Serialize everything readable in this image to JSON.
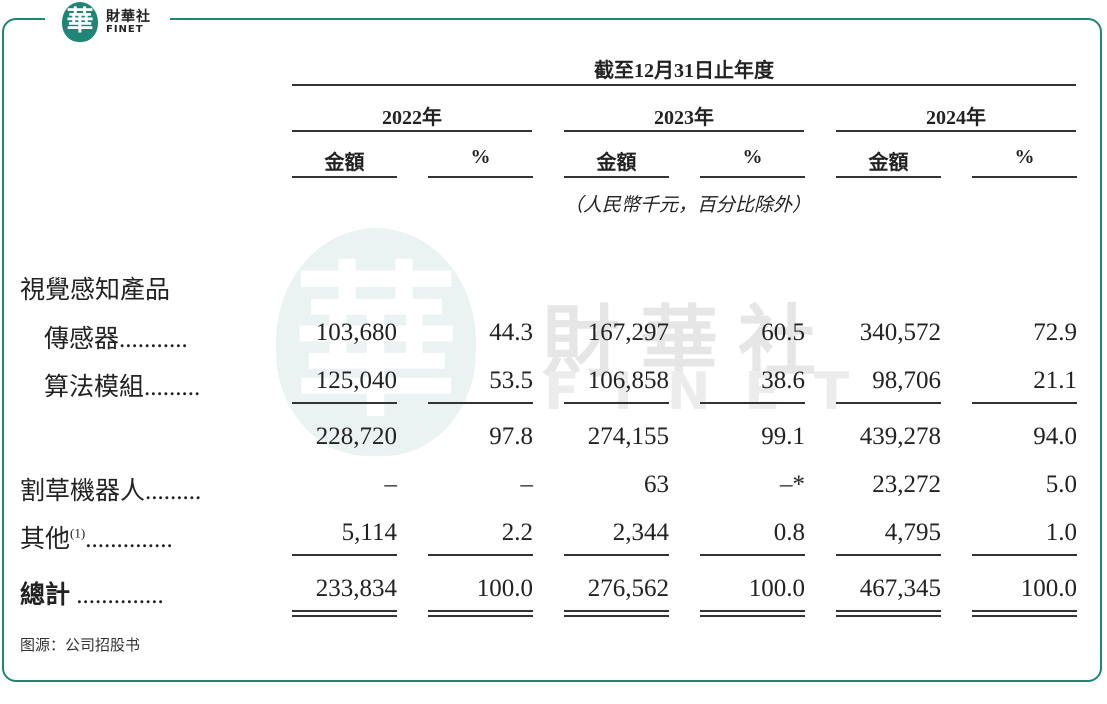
{
  "logo": {
    "glyph": "華",
    "name_cn": "財華社",
    "name_en": "FINET"
  },
  "watermark": {
    "glyph": "華",
    "name_cn": "財華社",
    "name_en": "FINET"
  },
  "table": {
    "period_header": "截至12月31日止年度",
    "years": [
      "2022年",
      "2023年",
      "2024年"
    ],
    "col_amount": "金額",
    "col_pct": "%",
    "unit_note": "（人民幣千元，百分比除外）",
    "section_label": "視覺感知產品",
    "rows": [
      {
        "label": "傳感器",
        "dots": "...........",
        "values": [
          "103,680",
          "44.3",
          "167,297",
          "60.5",
          "340,572",
          "72.9"
        ]
      },
      {
        "label": "算法模組",
        "dots": ".........",
        "values": [
          "125,040",
          "53.5",
          "106,858",
          "38.6",
          "98,706",
          "21.1"
        ]
      },
      {
        "label": "",
        "dots": "",
        "values": [
          "228,720",
          "97.8",
          "274,155",
          "99.1",
          "439,278",
          "94.0"
        ]
      },
      {
        "label": "割草機器人",
        "dots": ".........",
        "values": [
          "–",
          "–",
          "63",
          "–*",
          "23,272",
          "5.0"
        ]
      },
      {
        "label": "其他",
        "footnote": "(1)",
        "dots": "..............",
        "values": [
          "5,114",
          "2.2",
          "2,344",
          "0.8",
          "4,795",
          "1.0"
        ]
      },
      {
        "label": "總計",
        "dots": "..............",
        "values": [
          "233,834",
          "100.0",
          "276,562",
          "100.0",
          "467,345",
          "100.0"
        ]
      }
    ]
  },
  "source": "图源：公司招股书"
}
